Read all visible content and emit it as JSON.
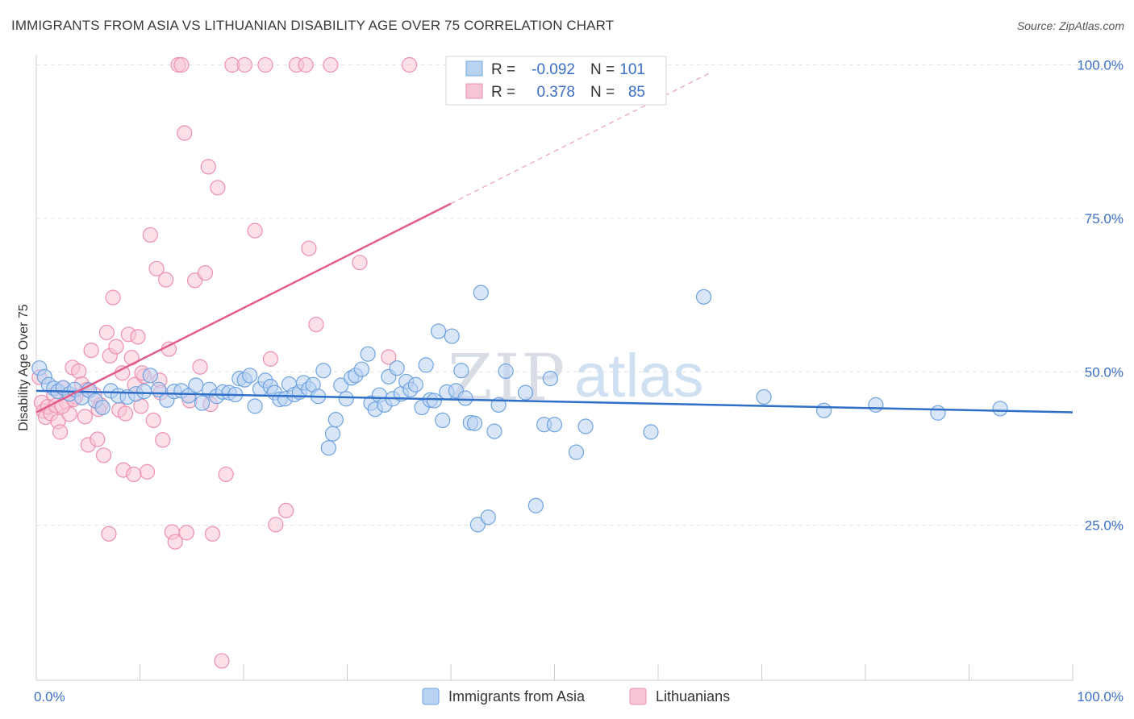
{
  "header": {
    "title": "IMMIGRANTS FROM ASIA VS LITHUANIAN DISABILITY AGE OVER 75 CORRELATION CHART",
    "source": "Source: ZipAtlas.com"
  },
  "colors": {
    "blue": "#6fa3e0",
    "blue_fill": "#b9d2f2",
    "blue_line": "#2f6fc8",
    "pink": "#ee8fae",
    "pink_fill": "#f7c6d6",
    "pink_line": "#e35d8a",
    "value_text": "#3a6fc4",
    "grid": "#e3e3e3"
  },
  "legend": {
    "rows": [
      {
        "r_label": "R =",
        "r_value": "-0.092",
        "n_label": "N =",
        "n_value": "101"
      },
      {
        "r_label": "R =",
        "r_value": "0.378",
        "n_label": "N =",
        "n_value": "85"
      }
    ]
  },
  "watermark": {
    "zip": "ZIP",
    "atlas": "atlas"
  },
  "chart_data": {
    "type": "scatter",
    "title": "IMMIGRANTS FROM ASIA VS LITHUANIAN DISABILITY AGE OVER 75 CORRELATION CHART",
    "xlabel": "",
    "ylabel": "Disability Age Over 75",
    "xlim": [
      0,
      100
    ],
    "ylim": [
      0,
      105
    ],
    "x_tick_labels": [
      "0.0%",
      "100.0%"
    ],
    "y_ticks": [
      25,
      50,
      75,
      100
    ],
    "y_tick_labels": [
      "25.0%",
      "50.0%",
      "75.0%",
      "100.0%"
    ],
    "grid": true,
    "legend_position": "bottom",
    "series": [
      {
        "name": "Immigrants from Asia",
        "R": -0.092,
        "N": 101,
        "trend": {
          "x": [
            0,
            100
          ],
          "y": [
            46.9,
            43.4
          ]
        },
        "points": [
          [
            0.3,
            50.6
          ],
          [
            0.8,
            49.2
          ],
          [
            1.2,
            47.9
          ],
          [
            1.7,
            47.3
          ],
          [
            2.1,
            46.8
          ],
          [
            2.6,
            47.4
          ],
          [
            3.2,
            46.4
          ],
          [
            3.7,
            47.1
          ],
          [
            4.4,
            45.8
          ],
          [
            5.1,
            47.0
          ],
          [
            5.7,
            45.3
          ],
          [
            6.4,
            44.2
          ],
          [
            7.2,
            46.9
          ],
          [
            7.9,
            46.1
          ],
          [
            8.8,
            45.9
          ],
          [
            9.6,
            46.4
          ],
          [
            10.4,
            46.8
          ],
          [
            11.0,
            49.4
          ],
          [
            11.8,
            47.1
          ],
          [
            12.6,
            45.4
          ],
          [
            13.3,
            46.8
          ],
          [
            14.0,
            46.9
          ],
          [
            14.7,
            46.1
          ],
          [
            15.4,
            47.8
          ],
          [
            16.0,
            44.9
          ],
          [
            16.7,
            47.1
          ],
          [
            17.4,
            46.0
          ],
          [
            18.0,
            46.7
          ],
          [
            18.6,
            46.6
          ],
          [
            19.2,
            46.3
          ],
          [
            19.6,
            48.9
          ],
          [
            20.1,
            48.7
          ],
          [
            20.6,
            49.4
          ],
          [
            21.1,
            44.4
          ],
          [
            21.6,
            47.2
          ],
          [
            22.1,
            48.6
          ],
          [
            22.6,
            47.6
          ],
          [
            23.0,
            46.6
          ],
          [
            23.5,
            45.5
          ],
          [
            24.0,
            45.6
          ],
          [
            24.4,
            48.0
          ],
          [
            24.9,
            46.3
          ],
          [
            25.4,
            46.7
          ],
          [
            25.8,
            48.2
          ],
          [
            26.3,
            47.2
          ],
          [
            26.7,
            47.9
          ],
          [
            27.2,
            46.0
          ],
          [
            27.7,
            50.2
          ],
          [
            28.2,
            37.6
          ],
          [
            28.6,
            39.9
          ],
          [
            28.9,
            42.2
          ],
          [
            29.4,
            47.8
          ],
          [
            29.9,
            45.6
          ],
          [
            30.4,
            49.0
          ],
          [
            30.8,
            49.4
          ],
          [
            31.4,
            50.4
          ],
          [
            32.0,
            52.9
          ],
          [
            32.3,
            44.9
          ],
          [
            32.7,
            43.9
          ],
          [
            33.1,
            46.2
          ],
          [
            33.6,
            44.6
          ],
          [
            34.0,
            49.2
          ],
          [
            34.4,
            45.6
          ],
          [
            34.8,
            50.6
          ],
          [
            35.2,
            46.4
          ],
          [
            35.7,
            48.4
          ],
          [
            36.1,
            47.1
          ],
          [
            36.6,
            47.9
          ],
          [
            37.2,
            44.2
          ],
          [
            37.6,
            51.1
          ],
          [
            38.0,
            45.4
          ],
          [
            38.4,
            45.3
          ],
          [
            38.8,
            56.6
          ],
          [
            39.2,
            42.1
          ],
          [
            39.6,
            46.7
          ],
          [
            40.1,
            55.8
          ],
          [
            40.5,
            46.9
          ],
          [
            41.0,
            50.2
          ],
          [
            41.4,
            45.7
          ],
          [
            41.9,
            41.7
          ],
          [
            42.3,
            41.6
          ],
          [
            42.6,
            25.1
          ],
          [
            42.9,
            62.9
          ],
          [
            43.6,
            26.3
          ],
          [
            44.2,
            40.3
          ],
          [
            44.6,
            44.6
          ],
          [
            45.3,
            50.1
          ],
          [
            47.2,
            46.6
          ],
          [
            48.2,
            28.2
          ],
          [
            49.0,
            41.4
          ],
          [
            49.6,
            48.9
          ],
          [
            50.0,
            41.4
          ],
          [
            52.1,
            36.9
          ],
          [
            53.0,
            41.1
          ],
          [
            59.3,
            40.2
          ],
          [
            64.4,
            62.2
          ],
          [
            70.2,
            45.9
          ],
          [
            76.0,
            43.7
          ],
          [
            81.0,
            44.6
          ],
          [
            87.0,
            43.3
          ],
          [
            93.0,
            44.0
          ]
        ]
      },
      {
        "name": "Lithuanians",
        "R": 0.378,
        "N": 85,
        "trend": {
          "x": [
            0,
            40
          ],
          "y": [
            43.4,
            77.4
          ]
        },
        "trend_extension": {
          "x": [
            40,
            65
          ],
          "y": [
            77.4,
            98.7
          ]
        },
        "points": [
          [
            0.3,
            49.1
          ],
          [
            0.5,
            45.0
          ],
          [
            0.7,
            43.6
          ],
          [
            0.9,
            42.6
          ],
          [
            1.1,
            44.3
          ],
          [
            1.4,
            43.2
          ],
          [
            1.7,
            46.3
          ],
          [
            1.9,
            44.5
          ],
          [
            2.1,
            41.9
          ],
          [
            2.3,
            40.2
          ],
          [
            2.6,
            47.3
          ],
          [
            2.9,
            45.1
          ],
          [
            3.2,
            43.1
          ],
          [
            3.5,
            50.7
          ],
          [
            3.8,
            45.9
          ],
          [
            4.1,
            50.1
          ],
          [
            4.4,
            48.0
          ],
          [
            4.7,
            42.7
          ],
          [
            5.0,
            38.1
          ],
          [
            5.3,
            53.5
          ],
          [
            5.6,
            46.3
          ],
          [
            5.9,
            39.0
          ],
          [
            6.2,
            44.6
          ],
          [
            6.5,
            36.4
          ],
          [
            6.8,
            56.4
          ],
          [
            7.1,
            52.6
          ],
          [
            7.4,
            62.1
          ],
          [
            7.7,
            54.1
          ],
          [
            8.0,
            43.8
          ],
          [
            8.3,
            49.8
          ],
          [
            8.6,
            43.2
          ],
          [
            8.9,
            56.1
          ],
          [
            9.2,
            52.3
          ],
          [
            9.5,
            47.9
          ],
          [
            9.8,
            55.7
          ],
          [
            10.1,
            44.4
          ],
          [
            10.4,
            49.3
          ],
          [
            10.7,
            33.7
          ],
          [
            11.0,
            72.3
          ],
          [
            11.3,
            42.1
          ],
          [
            11.6,
            66.8
          ],
          [
            11.9,
            48.6
          ],
          [
            12.2,
            38.9
          ],
          [
            12.5,
            65.0
          ],
          [
            12.8,
            53.7
          ],
          [
            13.1,
            23.9
          ],
          [
            13.4,
            22.3
          ],
          [
            13.7,
            100.0
          ],
          [
            14.0,
            100.0
          ],
          [
            14.3,
            88.9
          ],
          [
            14.8,
            45.3
          ],
          [
            15.3,
            64.9
          ],
          [
            15.8,
            50.8
          ],
          [
            16.3,
            66.1
          ],
          [
            16.6,
            83.4
          ],
          [
            17.0,
            23.6
          ],
          [
            17.5,
            80.0
          ],
          [
            17.9,
            2.9
          ],
          [
            18.3,
            33.3
          ],
          [
            18.9,
            100.0
          ],
          [
            20.1,
            100.0
          ],
          [
            21.1,
            73.0
          ],
          [
            22.1,
            100.0
          ],
          [
            22.6,
            52.1
          ],
          [
            23.1,
            25.1
          ],
          [
            24.1,
            27.4
          ],
          [
            25.1,
            100.0
          ],
          [
            26.0,
            100.0
          ],
          [
            26.3,
            70.1
          ],
          [
            27.0,
            57.7
          ],
          [
            28.4,
            100.0
          ],
          [
            31.2,
            67.8
          ],
          [
            34.0,
            52.4
          ],
          [
            36.0,
            100.0
          ],
          [
            2.5,
            44.4
          ],
          [
            3.6,
            45.5
          ],
          [
            4.9,
            47.1
          ],
          [
            6.0,
            43.9
          ],
          [
            7.0,
            23.6
          ],
          [
            8.4,
            34.0
          ],
          [
            9.4,
            33.3
          ],
          [
            10.2,
            49.8
          ],
          [
            12.0,
            46.6
          ],
          [
            14.5,
            23.8
          ],
          [
            16.8,
            44.7
          ]
        ]
      }
    ]
  }
}
